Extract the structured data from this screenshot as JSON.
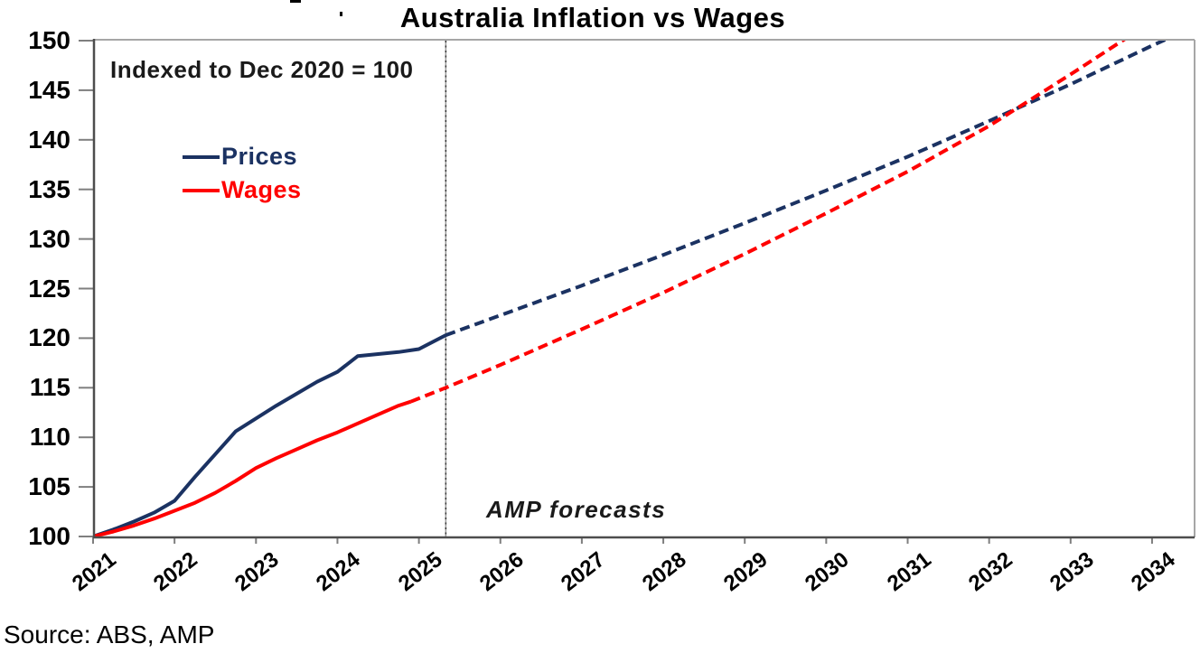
{
  "title": "Australia Inflation vs Wages",
  "annotations": {
    "index_note": "Indexed to Dec 2020 = 100",
    "forecast_note": "AMP forecasts",
    "source": "Source: ABS, AMP"
  },
  "legend": [
    {
      "label": "Prices",
      "color": "#1b3262"
    },
    {
      "label": "Wages",
      "color": "#ff0000"
    }
  ],
  "colors": {
    "prices": "#1b3262",
    "wages": "#ff0000",
    "axis_dark": "#4d4d4d",
    "axis_light": "#a6a6a6",
    "tick": "#7f7f7f",
    "divider_base": "#9a9a9a",
    "divider_dots": "#333333",
    "background": "#ffffff"
  },
  "chart_data": {
    "type": "line",
    "title": "Australia Inflation vs Wages",
    "xlabel": "",
    "ylabel": "",
    "ylim": [
      100,
      150
    ],
    "xlim": [
      2021,
      2034.52
    ],
    "grid": false,
    "legend_position": "upper-left-inside",
    "yticks": [
      100,
      105,
      110,
      115,
      120,
      125,
      130,
      135,
      140,
      145,
      150
    ],
    "xticks": [
      2021,
      2022,
      2023,
      2024,
      2025,
      2026,
      2027,
      2028,
      2029,
      2030,
      2031,
      2032,
      2033,
      2034
    ],
    "forecast_divider_x": 2025.33,
    "series": [
      {
        "name": "Prices (actual)",
        "color": "#1b3262",
        "style": "solid",
        "points": [
          [
            2021,
            100
          ],
          [
            2021.25,
            100.7
          ],
          [
            2021.5,
            101.5
          ],
          [
            2021.75,
            102.4
          ],
          [
            2022,
            103.6
          ],
          [
            2022.25,
            106.0
          ],
          [
            2022.5,
            108.3
          ],
          [
            2022.75,
            110.6
          ],
          [
            2023,
            111.9
          ],
          [
            2023.25,
            113.2
          ],
          [
            2023.5,
            114.4
          ],
          [
            2023.75,
            115.6
          ],
          [
            2024,
            116.6
          ],
          [
            2024.25,
            118.2
          ],
          [
            2024.5,
            118.4
          ],
          [
            2024.75,
            118.6
          ],
          [
            2025,
            118.9
          ],
          [
            2025.33,
            120.3
          ]
        ]
      },
      {
        "name": "Prices (AMP forecast)",
        "color": "#1b3262",
        "style": "dashed",
        "points": [
          [
            2025.33,
            120.3
          ],
          [
            2026,
            122.3
          ],
          [
            2027,
            125.3
          ],
          [
            2028,
            128.4
          ],
          [
            2029,
            131.6
          ],
          [
            2030,
            134.9
          ],
          [
            2031,
            138.3
          ],
          [
            2032,
            141.9
          ],
          [
            2033,
            145.6
          ],
          [
            2034,
            149.5
          ],
          [
            2034.3,
            150.6
          ]
        ]
      },
      {
        "name": "Wages (actual)",
        "color": "#ff0000",
        "style": "solid",
        "points": [
          [
            2021,
            100
          ],
          [
            2021.25,
            100.5
          ],
          [
            2021.5,
            101.1
          ],
          [
            2021.75,
            101.8
          ],
          [
            2022,
            102.6
          ],
          [
            2022.25,
            103.4
          ],
          [
            2022.5,
            104.4
          ],
          [
            2022.75,
            105.6
          ],
          [
            2023,
            106.9
          ],
          [
            2023.25,
            107.9
          ],
          [
            2023.5,
            108.8
          ],
          [
            2023.75,
            109.7
          ],
          [
            2024,
            110.5
          ],
          [
            2024.25,
            111.4
          ],
          [
            2024.5,
            112.3
          ],
          [
            2024.75,
            113.2
          ],
          [
            2024.9,
            113.6
          ]
        ]
      },
      {
        "name": "Wages (AMP forecast)",
        "color": "#ff0000",
        "style": "dashed",
        "points": [
          [
            2024.9,
            113.6
          ],
          [
            2025.33,
            115.0
          ],
          [
            2026,
            117.3
          ],
          [
            2027,
            120.9
          ],
          [
            2028,
            124.6
          ],
          [
            2029,
            128.5
          ],
          [
            2030,
            132.6
          ],
          [
            2031,
            136.8
          ],
          [
            2032,
            141.4
          ],
          [
            2033,
            146.6
          ],
          [
            2033.75,
            150.6
          ]
        ]
      }
    ]
  }
}
